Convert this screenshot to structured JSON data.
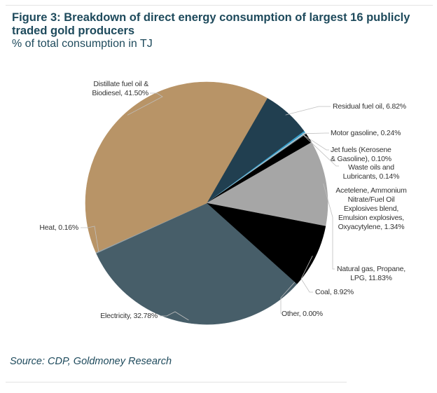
{
  "figure": {
    "title": "Figure 3: Breakdown of direct energy consumption of largest 16 publicly traded gold producers",
    "subtitle": "% of total consumption in TJ",
    "source": "Source: CDP, Goldmoney Research"
  },
  "chart_data": {
    "type": "pie",
    "title": "Figure 3: Breakdown of direct energy consumption of largest 16 publicly traded gold producers",
    "subtitle": "% of total consumption in TJ",
    "unit": "%",
    "start_angle_deg": -60,
    "direction": "clockwise",
    "slices": [
      {
        "name": "Residual fuel oil",
        "value": 6.82,
        "label": "Residual fuel oil, 6.82%",
        "color": "#213f50"
      },
      {
        "name": "Motor gasoline",
        "value": 0.24,
        "label": "Motor gasoline, 0.24%",
        "color": "#3aa0cc"
      },
      {
        "name": "Jet fuels (Kerosene & Gasoline)",
        "value": 0.1,
        "label": [
          "Jet fuels (Kerosene",
          "& Gasoline), 0.10%"
        ],
        "color": "#ffffff"
      },
      {
        "name": "Waste oils and Lubricants",
        "value": 0.14,
        "label": [
          "Waste oils and",
          "Lubricants, 0.14%"
        ],
        "color": "#6b8794"
      },
      {
        "name": "Acetelene, Ammonium Nitrate/Fuel Oil Explosives blend, Emulsion explosives, Oxyacytylene",
        "value": 1.34,
        "label": [
          "Acetelene, Ammonium",
          "Nitrate/Fuel Oil",
          "Explosives blend,",
          "Emulsion explosives,",
          "Oxyacytylene, 1.34%"
        ],
        "color": "#000000"
      },
      {
        "name": "Natural gas, Propane, LPG",
        "value": 11.83,
        "label": [
          "Natural gas, Propane,",
          "LPG, 11.83%"
        ],
        "color": "#a6a6a6"
      },
      {
        "name": "Coal",
        "value": 8.92,
        "label": "Coal, 8.92%",
        "color": "#000000"
      },
      {
        "name": "Other",
        "value": 0.0,
        "label": "Other, 0.00%",
        "color": "#7f7f7f"
      },
      {
        "name": "Electricity",
        "value": 32.78,
        "label": "Electricity, 32.78%",
        "color": "#475e69"
      },
      {
        "name": "Heat",
        "value": 0.16,
        "label": "Heat, 0.16%",
        "color": "#9aa4a8"
      },
      {
        "name": "Distillate fuel oil & Biodiesel",
        "value": 41.5,
        "label": [
          "Distillate fuel oil &",
          "Biodiesel, 41.50%"
        ],
        "color": "#b89467"
      }
    ],
    "legend": "none (data labels with leader lines)"
  }
}
